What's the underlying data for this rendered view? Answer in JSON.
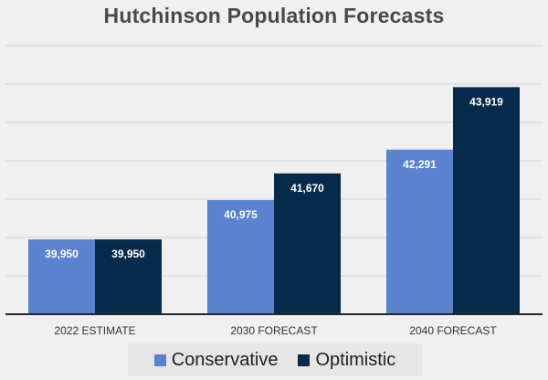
{
  "chart_data": {
    "type": "bar",
    "title": "Hutchinson Population Forecasts",
    "categories": [
      "2022 ESTIMATE",
      "2030 FORECAST",
      "2040 FORECAST"
    ],
    "series": [
      {
        "name": "Conservative",
        "values": [
          39950,
          40975,
          42291
        ],
        "color": "#5b82cf"
      },
      {
        "name": "Optimistic",
        "values": [
          39950,
          41670,
          43919
        ],
        "color": "#062a4a"
      }
    ],
    "value_labels": {
      "Conservative": [
        "39,950",
        "40,975",
        "42,291"
      ],
      "Optimistic": [
        "39,950",
        "41,670",
        "43,919"
      ]
    },
    "ylim": [
      38000,
      45000
    ],
    "y_tick_labels_visible": false,
    "grid": true,
    "legend_position": "bottom",
    "xlabel": "",
    "ylabel": ""
  }
}
